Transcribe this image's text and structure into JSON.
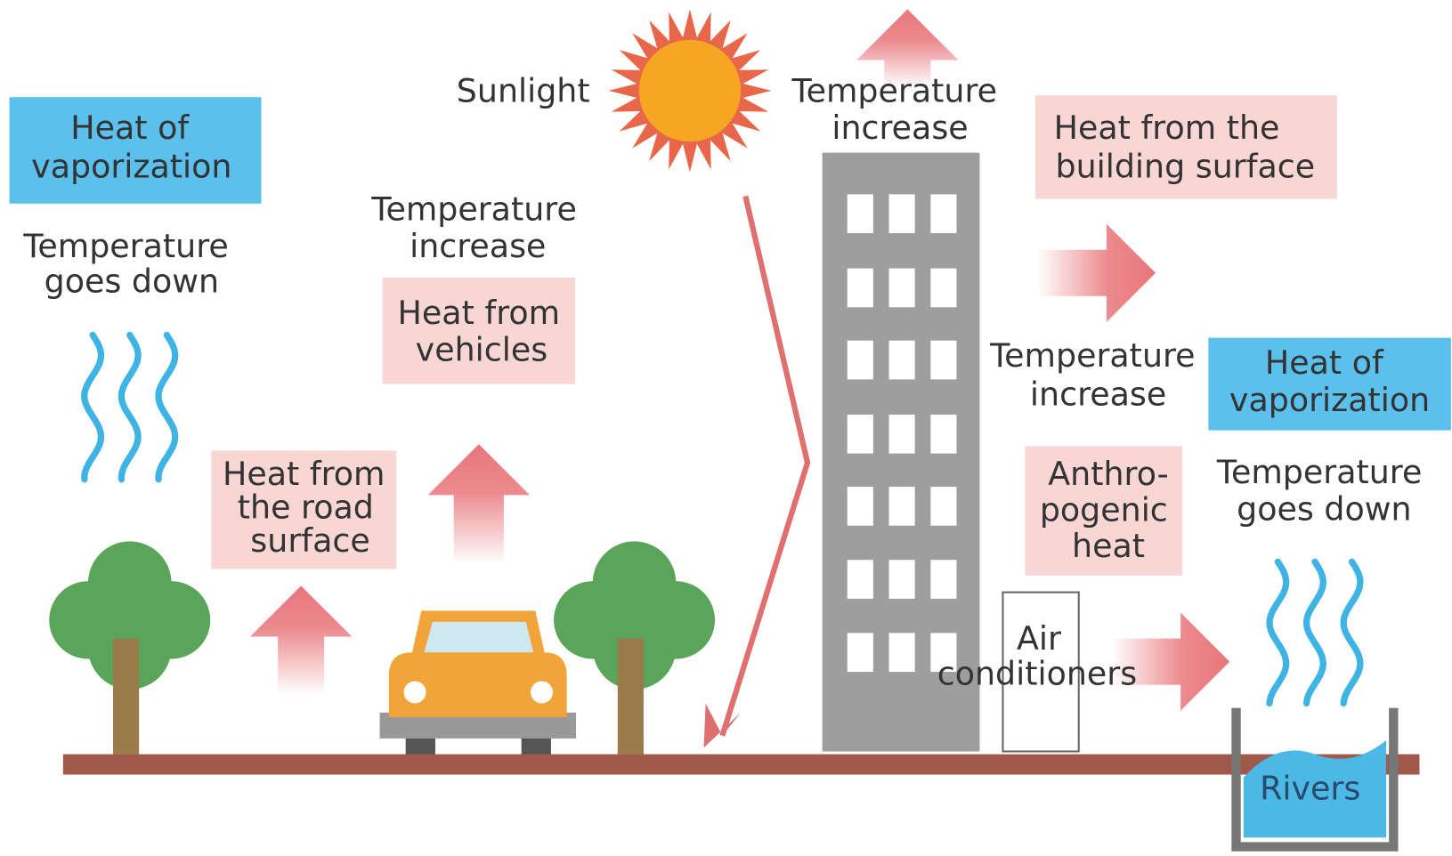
{
  "labels": {
    "sunlight": "Sunlight",
    "heat_vaporization_left": [
      "Heat of",
      "vaporization"
    ],
    "temp_down_left": [
      "Temperature",
      "goes down"
    ],
    "temp_increase_vehicles": [
      "Temperature",
      "increase"
    ],
    "heat_vehicles": [
      "Heat from",
      "vehicles"
    ],
    "heat_road": [
      "Heat from",
      "the road",
      "surface"
    ],
    "temp_increase_top": [
      "Temperature",
      "increase"
    ],
    "heat_building": [
      "Heat from the",
      "building surface"
    ],
    "temp_increase_right": [
      "Temperature",
      "increase"
    ],
    "heat_vaporization_right": [
      "Heat of",
      "vaporization"
    ],
    "anthropogenic": [
      "Anthro-",
      "pogenic",
      "heat"
    ],
    "temp_down_right": [
      "Temperature",
      "goes down"
    ],
    "air_conditioners": [
      "Air",
      "conditioners"
    ],
    "rivers": "Rivers"
  }
}
